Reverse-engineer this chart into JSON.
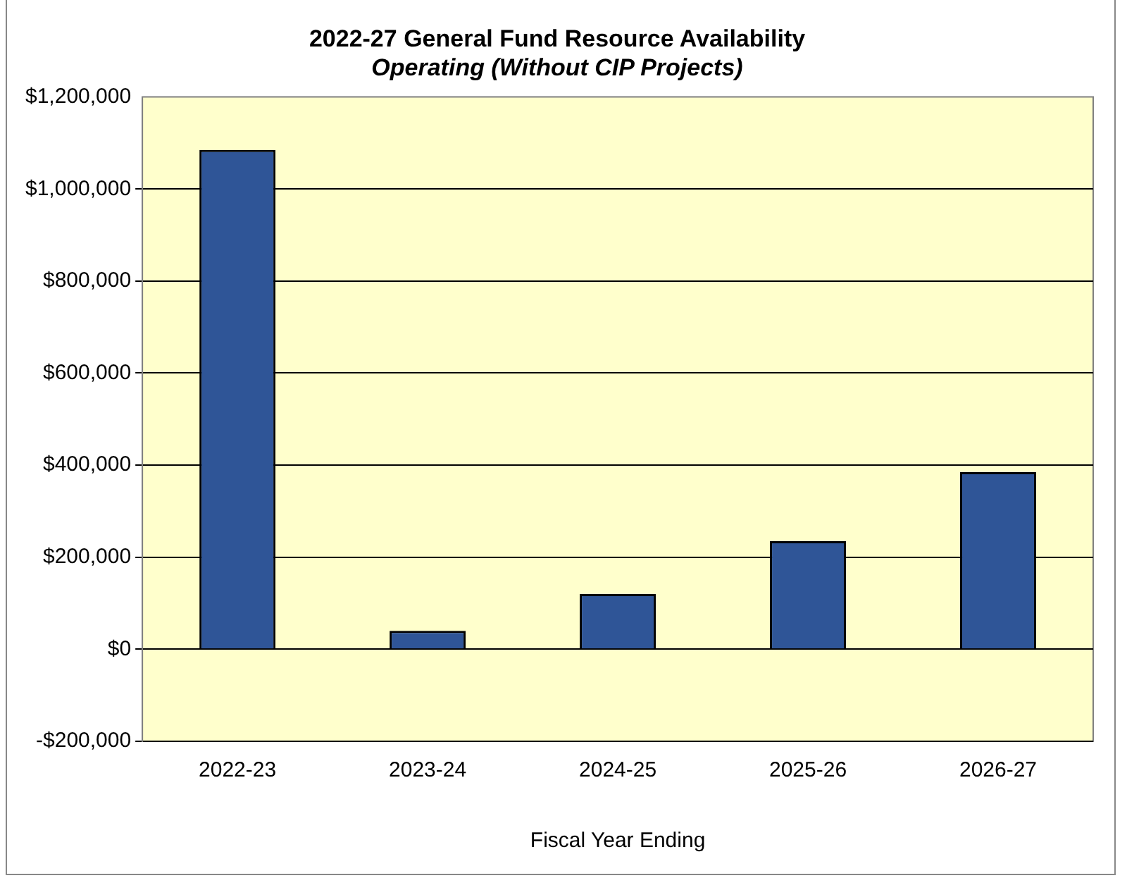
{
  "chart_data": {
    "type": "bar",
    "title": "2022-27 General Fund Resource Availability",
    "subtitle": "Operating (Without CIP Projects)",
    "xlabel": "Fiscal Year Ending",
    "categories": [
      "2022-23",
      "2023-24",
      "2024-25",
      "2025-26",
      "2026-27"
    ],
    "values": [
      1085000,
      40000,
      120000,
      235000,
      385000
    ],
    "color": "#2f5597",
    "ylim": [
      -200000,
      1200000
    ],
    "yticks": [
      {
        "value": -200000,
        "label": "-$200,000"
      },
      {
        "value": 0,
        "label": "$0"
      },
      {
        "value": 200000,
        "label": "$200,000"
      },
      {
        "value": 400000,
        "label": "$400,000"
      },
      {
        "value": 600000,
        "label": "$600,000"
      },
      {
        "value": 800000,
        "label": "$800,000"
      },
      {
        "value": 1000000,
        "label": "$1,000,000"
      },
      {
        "value": 1200000,
        "label": "$1,200,000"
      }
    ],
    "grid": "y",
    "legend": false
  }
}
